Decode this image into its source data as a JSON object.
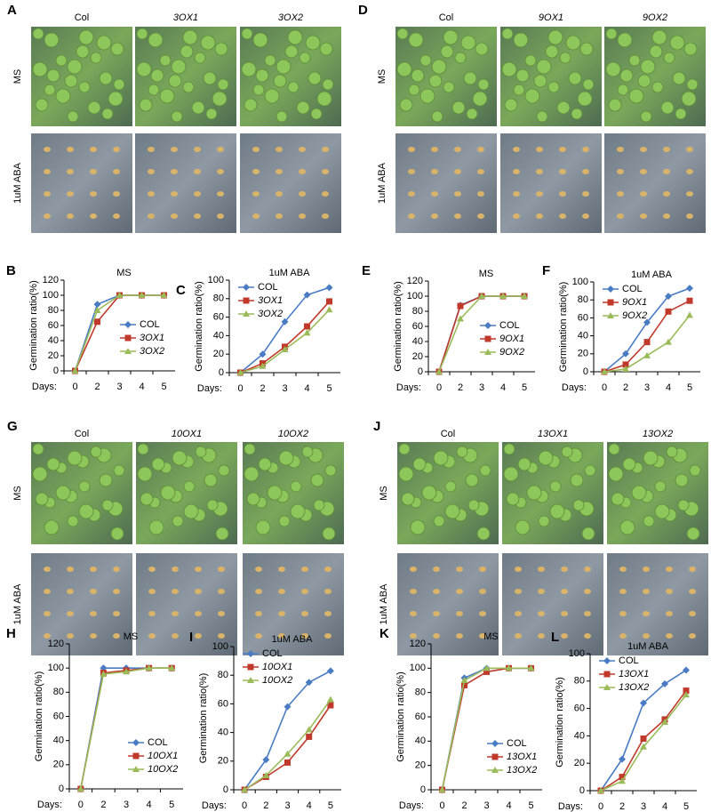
{
  "photo_panels": [
    {
      "label": "A",
      "columns": [
        "Col",
        "3OX1",
        "3OX2"
      ],
      "rows": [
        "MS",
        "1uM ABA"
      ]
    },
    {
      "label": "D",
      "columns": [
        "Col",
        "9OX1",
        "9OX2"
      ],
      "rows": [
        "MS",
        "1uM ABA"
      ]
    },
    {
      "label": "G",
      "columns": [
        "Col",
        "10OX1",
        "10OX2"
      ],
      "rows": [
        "MS",
        "1uM ABA"
      ]
    },
    {
      "label": "J",
      "columns": [
        "Col",
        "13OX1",
        "13OX2"
      ],
      "rows": [
        "MS",
        "1uM ABA"
      ]
    }
  ],
  "chart_data": [
    {
      "type": "line",
      "label": "B",
      "title": "MS",
      "y_label": "Germination ratio(%)",
      "x_label": "Days:",
      "categories": [
        "0",
        "2",
        "3",
        "4",
        "5"
      ],
      "ylim": [
        0,
        120
      ],
      "yticks": [
        0,
        20,
        40,
        60,
        80,
        100,
        120
      ],
      "legend": "lower right",
      "series": [
        {
          "name": "COL",
          "color": "#4a7cc4",
          "values": [
            0,
            88,
            100,
            100,
            100
          ]
        },
        {
          "name": "3OX1",
          "color": "#c0392b",
          "values": [
            0,
            65,
            100,
            100,
            100
          ]
        },
        {
          "name": "3OX2",
          "color": "#9bbb59",
          "values": [
            0,
            80,
            100,
            100,
            100
          ]
        }
      ]
    },
    {
      "type": "line",
      "label": "C",
      "title": "1uM ABA",
      "y_label": "Germination ratio(%)",
      "x_label": "Days:",
      "categories": [
        "0",
        "2",
        "3",
        "4",
        "5"
      ],
      "ylim": [
        0,
        100
      ],
      "yticks": [
        0,
        20,
        40,
        60,
        80,
        100
      ],
      "legend": "upper left",
      "series": [
        {
          "name": "COL",
          "color": "#4a7cc4",
          "values": [
            0,
            20,
            55,
            84,
            92
          ]
        },
        {
          "name": "3OX1",
          "color": "#c0392b",
          "values": [
            0,
            10,
            28,
            50,
            77
          ]
        },
        {
          "name": "3OX2",
          "color": "#9bbb59",
          "values": [
            0,
            7,
            25,
            43,
            68
          ]
        }
      ]
    },
    {
      "type": "line",
      "label": "E",
      "title": "MS",
      "y_label": "Germination ratio(%)",
      "x_label": "Days:",
      "categories": [
        "0",
        "2",
        "3",
        "4",
        "5"
      ],
      "ylim": [
        0,
        120
      ],
      "yticks": [
        0,
        20,
        40,
        60,
        80,
        100,
        120
      ],
      "legend": "lower right",
      "series": [
        {
          "name": "COL",
          "color": "#4a7cc4",
          "values": [
            0,
            88,
            100,
            100,
            100
          ]
        },
        {
          "name": "9OX1",
          "color": "#c0392b",
          "values": [
            0,
            87,
            100,
            100,
            100
          ]
        },
        {
          "name": "9OX2",
          "color": "#9bbb59",
          "values": [
            0,
            70,
            100,
            100,
            100
          ]
        }
      ]
    },
    {
      "type": "line",
      "label": "F",
      "title": "1uM ABA",
      "y_label": "Germination ratio(%)",
      "x_label": "Days:",
      "categories": [
        "0",
        "2",
        "3",
        "4",
        "5"
      ],
      "ylim": [
        0,
        100
      ],
      "yticks": [
        0,
        20,
        40,
        60,
        80,
        100
      ],
      "legend": "upper left",
      "series": [
        {
          "name": "COL",
          "color": "#4a7cc4",
          "values": [
            0,
            20,
            55,
            84,
            93
          ]
        },
        {
          "name": "9OX1",
          "color": "#c0392b",
          "values": [
            0,
            8,
            33,
            67,
            79
          ]
        },
        {
          "name": "9OX2",
          "color": "#9bbb59",
          "values": [
            0,
            3,
            18,
            33,
            63
          ]
        }
      ]
    },
    {
      "type": "line",
      "label": "H",
      "title": "MS",
      "y_label": "Germination ratio(%)",
      "x_label": "Days:",
      "categories": [
        "0",
        "2",
        "3",
        "4",
        "5"
      ],
      "ylim": [
        0,
        120
      ],
      "yticks": [
        0,
        20,
        40,
        60,
        80,
        100,
        120
      ],
      "legend": "lower right",
      "series": [
        {
          "name": "COL",
          "color": "#4a7cc4",
          "values": [
            0,
            100,
            100,
            100,
            100
          ]
        },
        {
          "name": "10OX1",
          "color": "#c0392b",
          "values": [
            0,
            96,
            98,
            100,
            100
          ]
        },
        {
          "name": "10OX2",
          "color": "#9bbb59",
          "values": [
            0,
            95,
            97,
            100,
            100
          ]
        }
      ]
    },
    {
      "type": "line",
      "label": "I",
      "title": "1uM ABA",
      "y_label": "Germination ratio(%)",
      "x_label": "Days:",
      "categories": [
        "0",
        "2",
        "3",
        "4",
        "5"
      ],
      "ylim": [
        0,
        100
      ],
      "yticks": [
        0,
        20,
        40,
        60,
        80,
        100
      ],
      "legend": "upper left",
      "series": [
        {
          "name": "COL",
          "color": "#4a7cc4",
          "values": [
            0,
            21,
            58,
            75,
            83
          ]
        },
        {
          "name": "10OX1",
          "color": "#c0392b",
          "values": [
            0,
            9,
            19,
            37,
            59
          ]
        },
        {
          "name": "10OX2",
          "color": "#9bbb59",
          "values": [
            0,
            10,
            25,
            42,
            63
          ]
        }
      ]
    },
    {
      "type": "line",
      "label": "K",
      "title": "MS",
      "y_label": "Germination ratio(%)",
      "x_label": "Days:",
      "categories": [
        "0",
        "2",
        "3",
        "4",
        "5"
      ],
      "ylim": [
        0,
        120
      ],
      "yticks": [
        0,
        20,
        40,
        60,
        80,
        100,
        120
      ],
      "legend": "lower right",
      "series": [
        {
          "name": "COL",
          "color": "#4a7cc4",
          "values": [
            0,
            92,
            100,
            100,
            100
          ]
        },
        {
          "name": "13OX1",
          "color": "#c0392b",
          "values": [
            0,
            86,
            97,
            100,
            100
          ]
        },
        {
          "name": "13OX2",
          "color": "#9bbb59",
          "values": [
            0,
            90,
            100,
            100,
            100
          ]
        }
      ]
    },
    {
      "type": "line",
      "label": "L",
      "title": "1uM ABA",
      "y_label": "Germination ratio(%)",
      "x_label": "Days:",
      "categories": [
        "0",
        "2",
        "3",
        "4",
        "5"
      ],
      "ylim": [
        0,
        100
      ],
      "yticks": [
        0,
        20,
        40,
        60,
        80,
        100
      ],
      "legend": "upper left",
      "series": [
        {
          "name": "COL",
          "color": "#4a7cc4",
          "values": [
            0,
            23,
            64,
            78,
            88
          ]
        },
        {
          "name": "13OX1",
          "color": "#c0392b",
          "values": [
            0,
            10,
            38,
            52,
            73
          ]
        },
        {
          "name": "13OX2",
          "color": "#9bbb59",
          "values": [
            0,
            7,
            32,
            50,
            70
          ]
        }
      ]
    }
  ]
}
